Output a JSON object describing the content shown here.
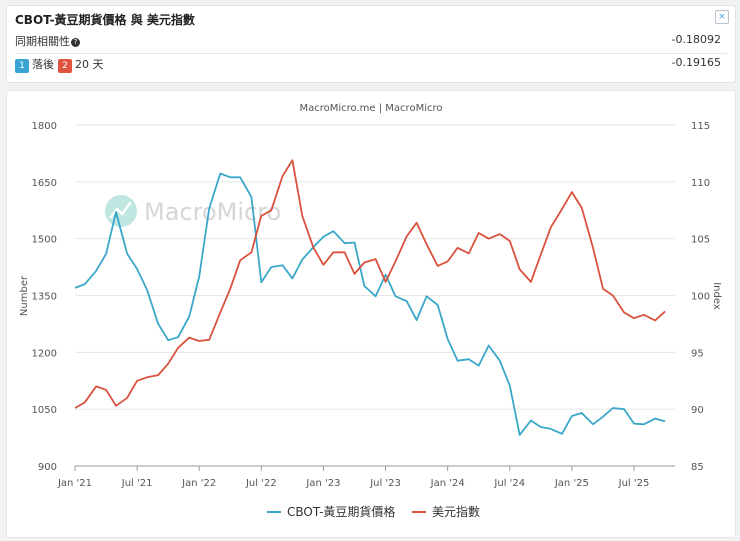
{
  "header": {
    "title": "CBOT-黃豆期貨價格 與 美元指數",
    "close_label": "×"
  },
  "stats": {
    "correlation_label": "同期相關性",
    "correlation_help_icon": "?",
    "correlation_value": "-0.18092",
    "lead_badge": "1",
    "lead_label": "落後",
    "lag_badge": "2",
    "lag_label": "20 天",
    "lag_value": "-0.19165"
  },
  "colors": {
    "soy": "#3aa7c9",
    "usd": "#d9523e",
    "watermark": "#bfe6e0"
  },
  "chart_data": {
    "type": "line",
    "title": "MacroMicro.me | MacroMicro",
    "watermark": "MacroMicro",
    "ylabel_left": "Number",
    "ylabel_right": "Index",
    "ylim_left": [
      900,
      1800
    ],
    "ylim_right": [
      85,
      115
    ],
    "yticks_left": [
      "1800",
      "1650",
      "1500",
      "1350",
      "1200",
      "1050",
      "900"
    ],
    "yticks_right": [
      "115",
      "110",
      "105",
      "100",
      "95",
      "90",
      "85"
    ],
    "xticks": [
      "Jan '21",
      "Jul '21",
      "Jan '22",
      "Jul '22",
      "Jan '23",
      "Jul '23",
      "Jan '24",
      "Jul '24",
      "Jan '25",
      "Jul '25"
    ],
    "x_range": [
      2021.0,
      2025.83
    ],
    "legend_position": "bottom",
    "series": [
      {
        "name": "CBOT-黃豆期貨價格",
        "axis": "left",
        "points": [
          [
            2021.0,
            1370
          ],
          [
            2021.08,
            1380
          ],
          [
            2021.17,
            1415
          ],
          [
            2021.25,
            1460
          ],
          [
            2021.33,
            1570
          ],
          [
            2021.42,
            1460
          ],
          [
            2021.5,
            1420
          ],
          [
            2021.58,
            1365
          ],
          [
            2021.67,
            1275
          ],
          [
            2021.75,
            1232
          ],
          [
            2021.83,
            1240
          ],
          [
            2021.92,
            1295
          ],
          [
            2022.0,
            1400
          ],
          [
            2022.08,
            1580
          ],
          [
            2022.17,
            1672
          ],
          [
            2022.25,
            1662
          ],
          [
            2022.33,
            1662
          ],
          [
            2022.42,
            1610
          ],
          [
            2022.5,
            1385
          ],
          [
            2022.58,
            1425
          ],
          [
            2022.67,
            1430
          ],
          [
            2022.75,
            1395
          ],
          [
            2022.83,
            1445
          ],
          [
            2022.92,
            1478
          ],
          [
            2023.0,
            1505
          ],
          [
            2023.08,
            1520
          ],
          [
            2023.17,
            1488
          ],
          [
            2023.25,
            1490
          ],
          [
            2023.33,
            1375
          ],
          [
            2023.42,
            1348
          ],
          [
            2023.5,
            1405
          ],
          [
            2023.58,
            1348
          ],
          [
            2023.67,
            1335
          ],
          [
            2023.75,
            1285
          ],
          [
            2023.83,
            1348
          ],
          [
            2023.92,
            1325
          ],
          [
            2024.0,
            1235
          ],
          [
            2024.08,
            1178
          ],
          [
            2024.17,
            1182
          ],
          [
            2024.25,
            1165
          ],
          [
            2024.33,
            1218
          ],
          [
            2024.42,
            1178
          ],
          [
            2024.5,
            1112
          ],
          [
            2024.58,
            982
          ],
          [
            2024.67,
            1020
          ],
          [
            2024.75,
            1003
          ],
          [
            2024.83,
            998
          ],
          [
            2024.92,
            985
          ],
          [
            2025.0,
            1032
          ],
          [
            2025.08,
            1040
          ],
          [
            2025.17,
            1010
          ],
          [
            2025.25,
            1030
          ],
          [
            2025.33,
            1053
          ],
          [
            2025.42,
            1050
          ],
          [
            2025.5,
            1012
          ],
          [
            2025.58,
            1010
          ],
          [
            2025.67,
            1025
          ],
          [
            2025.75,
            1018
          ]
        ]
      },
      {
        "name": "美元指數",
        "axis": "right",
        "points": [
          [
            2021.0,
            90.1
          ],
          [
            2021.08,
            90.6
          ],
          [
            2021.17,
            92.0
          ],
          [
            2021.25,
            91.7
          ],
          [
            2021.33,
            90.3
          ],
          [
            2021.42,
            91.0
          ],
          [
            2021.5,
            92.5
          ],
          [
            2021.58,
            92.8
          ],
          [
            2021.67,
            93.0
          ],
          [
            2021.75,
            94.0
          ],
          [
            2021.83,
            95.4
          ],
          [
            2021.92,
            96.3
          ],
          [
            2022.0,
            96.0
          ],
          [
            2022.08,
            96.1
          ],
          [
            2022.17,
            98.5
          ],
          [
            2022.25,
            100.6
          ],
          [
            2022.33,
            103.1
          ],
          [
            2022.42,
            103.8
          ],
          [
            2022.5,
            107.0
          ],
          [
            2022.58,
            107.5
          ],
          [
            2022.67,
            110.5
          ],
          [
            2022.75,
            111.9
          ],
          [
            2022.83,
            107.0
          ],
          [
            2022.92,
            104.2
          ],
          [
            2023.0,
            102.7
          ],
          [
            2023.08,
            103.8
          ],
          [
            2023.17,
            103.8
          ],
          [
            2023.25,
            101.9
          ],
          [
            2023.33,
            102.9
          ],
          [
            2023.42,
            103.2
          ],
          [
            2023.5,
            101.2
          ],
          [
            2023.58,
            103.0
          ],
          [
            2023.67,
            105.2
          ],
          [
            2023.75,
            106.4
          ],
          [
            2023.83,
            104.5
          ],
          [
            2023.92,
            102.6
          ],
          [
            2024.0,
            103.0
          ],
          [
            2024.08,
            104.2
          ],
          [
            2024.17,
            103.7
          ],
          [
            2024.25,
            105.5
          ],
          [
            2024.33,
            105.0
          ],
          [
            2024.42,
            105.4
          ],
          [
            2024.5,
            104.8
          ],
          [
            2024.58,
            102.3
          ],
          [
            2024.67,
            101.2
          ],
          [
            2024.75,
            103.6
          ],
          [
            2024.83,
            106.0
          ],
          [
            2024.92,
            107.6
          ],
          [
            2025.0,
            109.1
          ],
          [
            2025.08,
            107.7
          ],
          [
            2025.17,
            104.2
          ],
          [
            2025.25,
            100.6
          ],
          [
            2025.33,
            100.0
          ],
          [
            2025.42,
            98.5
          ],
          [
            2025.5,
            98.0
          ],
          [
            2025.58,
            98.3
          ],
          [
            2025.67,
            97.8
          ],
          [
            2025.75,
            98.6
          ]
        ]
      }
    ]
  }
}
